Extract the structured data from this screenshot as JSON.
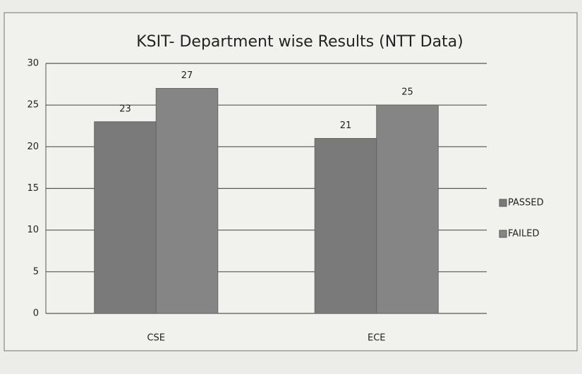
{
  "chart_data": {
    "type": "bar",
    "title": "KSIT- Department wise Results (NTT Data)",
    "categories": [
      "CSE",
      "ECE"
    ],
    "series": [
      {
        "name": "PASSED",
        "color": "#7a7a7a",
        "values": [
          23,
          21
        ]
      },
      {
        "name": "FAILED",
        "color": "#858585",
        "values": [
          27,
          25
        ]
      }
    ],
    "ylim": [
      0,
      30
    ],
    "yticks": [
      0,
      5,
      10,
      15,
      20,
      25,
      30
    ],
    "grid": true,
    "legend": "right"
  }
}
